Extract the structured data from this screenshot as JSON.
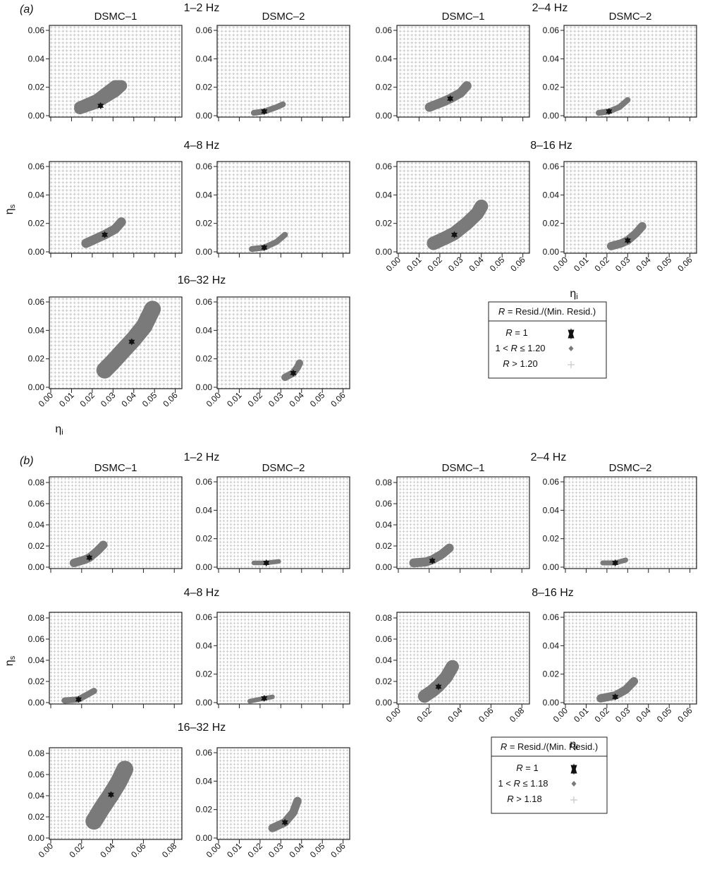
{
  "panel_labels": {
    "a": "(a)",
    "b": "(b)"
  },
  "symbols": {
    "eta_i": "η",
    "sub_i": "i",
    "eta_s": "η",
    "sub_s": "s"
  },
  "colors": {
    "grid_marker": "#c8c8c8",
    "region": "#7a7a7a",
    "star": "#111111",
    "frame": "#222222"
  },
  "legend_a": {
    "header": {
      "r": "R",
      "text": " = Resid./(Min. Resid.)"
    },
    "rows": [
      {
        "pre": "",
        "r": "R",
        "post": " = 1",
        "marker": "star-icon"
      },
      {
        "pre": "1 < ",
        "r": "R",
        "post": " ≤ 1.20",
        "marker": "diamond-icon"
      },
      {
        "pre": "",
        "r": "R",
        "post": " > 1.20",
        "marker": "plus-icon"
      }
    ]
  },
  "legend_b": {
    "header": {
      "r": "R",
      "text": " = Resid./(Min. Resid.)"
    },
    "rows": [
      {
        "pre": "",
        "r": "R",
        "post": " = 1",
        "marker": "star-icon"
      },
      {
        "pre": "1 < ",
        "r": "R",
        "post": " ≤ 1.18",
        "marker": "diamond-icon"
      },
      {
        "pre": "",
        "r": "R",
        "post": " > 1.18",
        "marker": "plus-icon"
      }
    ]
  },
  "chart_data": [
    {
      "type": "scatter",
      "panel": "a",
      "band": "1–2 Hz",
      "subplot_title": "DSMC–1",
      "xlim": [
        0,
        0.0625
      ],
      "ylim": [
        0,
        0.0625
      ],
      "xticks": [
        "0.00",
        "0.01",
        "0.02",
        "0.03",
        "0.04",
        "0.05",
        "0.06"
      ],
      "yticks": [
        "0.00",
        "0.02",
        "0.04",
        "0.06"
      ],
      "show_xtick_labels": false,
      "show_ylabel": false,
      "show_xlabel": false,
      "best_fit": [
        0.024,
        0.007
      ],
      "region_pts": [
        [
          0.014,
          0.005
        ],
        [
          0.022,
          0.009
        ],
        [
          0.031,
          0.017
        ],
        [
          0.034,
          0.021
        ],
        [
          0.031,
          0.021
        ],
        [
          0.022,
          0.011
        ],
        [
          0.014,
          0.006
        ]
      ],
      "region_width": 0.0055
    },
    {
      "type": "scatter",
      "panel": "a",
      "band": "1–2 Hz",
      "subplot_title": "DSMC–2",
      "xlim": [
        0,
        0.0625
      ],
      "ylim": [
        0,
        0.0625
      ],
      "xticks": [
        "0.00",
        "0.01",
        "0.02",
        "0.03",
        "0.04",
        "0.05",
        "0.06"
      ],
      "yticks": [
        "0.00",
        "0.02",
        "0.04",
        "0.06"
      ],
      "show_xtick_labels": false,
      "show_ylabel": false,
      "show_xlabel": false,
      "best_fit": [
        0.022,
        0.003
      ],
      "region_pts": [
        [
          0.017,
          0.002
        ],
        [
          0.022,
          0.003
        ],
        [
          0.028,
          0.006
        ],
        [
          0.031,
          0.008
        ]
      ],
      "region_width": 0.0028
    },
    {
      "type": "scatter",
      "panel": "a",
      "band": "2–4 Hz",
      "subplot_title": "DSMC–1",
      "xlim": [
        0,
        0.0625
      ],
      "ylim": [
        0,
        0.0625
      ],
      "xticks": [
        "0.00",
        "0.01",
        "0.02",
        "0.03",
        "0.04",
        "0.05",
        "0.06"
      ],
      "yticks": [
        "0.00",
        "0.02",
        "0.04",
        "0.06"
      ],
      "show_xtick_labels": false,
      "show_ylabel": false,
      "show_xlabel": false,
      "best_fit": [
        0.025,
        0.012
      ],
      "region_pts": [
        [
          0.015,
          0.006
        ],
        [
          0.022,
          0.01
        ],
        [
          0.025,
          0.012
        ],
        [
          0.03,
          0.016
        ],
        [
          0.033,
          0.021
        ]
      ],
      "region_width": 0.0045
    },
    {
      "type": "scatter",
      "panel": "a",
      "band": "2–4 Hz",
      "subplot_title": "DSMC–2",
      "xlim": [
        0,
        0.0625
      ],
      "ylim": [
        0,
        0.0625
      ],
      "xticks": [
        "0.00",
        "0.01",
        "0.02",
        "0.03",
        "0.04",
        "0.05",
        "0.06"
      ],
      "yticks": [
        "0.00",
        "0.02",
        "0.04",
        "0.06"
      ],
      "show_xtick_labels": false,
      "show_ylabel": false,
      "show_xlabel": false,
      "best_fit": [
        0.021,
        0.003
      ],
      "region_pts": [
        [
          0.016,
          0.002
        ],
        [
          0.021,
          0.003
        ],
        [
          0.026,
          0.006
        ],
        [
          0.03,
          0.011
        ]
      ],
      "region_width": 0.0028
    },
    {
      "type": "scatter",
      "panel": "a",
      "band": "4–8 Hz",
      "subplot_title": "",
      "xlim": [
        0,
        0.0625
      ],
      "ylim": [
        0,
        0.0625
      ],
      "xticks": [
        "0.00",
        "0.01",
        "0.02",
        "0.03",
        "0.04",
        "0.05",
        "0.06"
      ],
      "yticks": [
        "0.00",
        "0.02",
        "0.04",
        "0.06"
      ],
      "show_xtick_labels": false,
      "show_ylabel": true,
      "show_xlabel": false,
      "best_fit": [
        0.026,
        0.012
      ],
      "region_pts": [
        [
          0.017,
          0.006
        ],
        [
          0.023,
          0.01
        ],
        [
          0.026,
          0.012
        ],
        [
          0.031,
          0.016
        ],
        [
          0.034,
          0.021
        ]
      ],
      "region_width": 0.0045
    },
    {
      "type": "scatter",
      "panel": "a",
      "band": "4–8 Hz",
      "subplot_title": "",
      "xlim": [
        0,
        0.0625
      ],
      "ylim": [
        0,
        0.0625
      ],
      "xticks": [
        "0.00",
        "0.01",
        "0.02",
        "0.03",
        "0.04",
        "0.05",
        "0.06"
      ],
      "yticks": [
        "0.00",
        "0.02",
        "0.04",
        "0.06"
      ],
      "show_xtick_labels": false,
      "show_ylabel": false,
      "show_xlabel": false,
      "best_fit": [
        0.022,
        0.003
      ],
      "region_pts": [
        [
          0.016,
          0.002
        ],
        [
          0.022,
          0.003
        ],
        [
          0.028,
          0.007
        ],
        [
          0.032,
          0.012
        ]
      ],
      "region_width": 0.0028
    },
    {
      "type": "scatter",
      "panel": "a",
      "band": "8–16 Hz",
      "subplot_title": "",
      "xlim": [
        0,
        0.0625
      ],
      "ylim": [
        0,
        0.0625
      ],
      "xticks": [
        "0.00",
        "0.01",
        "0.02",
        "0.03",
        "0.04",
        "0.05",
        "0.06"
      ],
      "yticks": [
        "0.00",
        "0.02",
        "0.04",
        "0.06"
      ],
      "show_xtick_labels": true,
      "show_ylabel": false,
      "show_xlabel": false,
      "best_fit": [
        0.027,
        0.012
      ],
      "region_pts": [
        [
          0.017,
          0.006
        ],
        [
          0.023,
          0.01
        ],
        [
          0.027,
          0.013
        ],
        [
          0.033,
          0.02
        ],
        [
          0.038,
          0.027
        ],
        [
          0.04,
          0.032
        ]
      ],
      "region_width": 0.0065
    },
    {
      "type": "scatter",
      "panel": "a",
      "band": "8–16 Hz",
      "subplot_title": "",
      "xlim": [
        0,
        0.0625
      ],
      "ylim": [
        0,
        0.0625
      ],
      "xticks": [
        "0.00",
        "0.01",
        "0.02",
        "0.03",
        "0.04",
        "0.05",
        "0.06"
      ],
      "yticks": [
        "0.00",
        "0.02",
        "0.04",
        "0.06"
      ],
      "show_xtick_labels": true,
      "show_ylabel": false,
      "show_xlabel": true,
      "best_fit": [
        0.03,
        0.008
      ],
      "region_pts": [
        [
          0.022,
          0.004
        ],
        [
          0.027,
          0.006
        ],
        [
          0.03,
          0.008
        ],
        [
          0.034,
          0.013
        ],
        [
          0.037,
          0.018
        ]
      ],
      "region_width": 0.004
    },
    {
      "type": "scatter",
      "panel": "a",
      "band": "16–32 Hz",
      "subplot_title": "",
      "xlim": [
        0,
        0.0625
      ],
      "ylim": [
        0,
        0.0625
      ],
      "xticks": [
        "0.00",
        "0.01",
        "0.02",
        "0.03",
        "0.04",
        "0.05",
        "0.06"
      ],
      "yticks": [
        "0.00",
        "0.02",
        "0.04",
        "0.06"
      ],
      "show_xtick_labels": true,
      "show_ylabel": false,
      "show_xlabel": true,
      "best_fit": [
        0.039,
        0.032
      ],
      "region_pts": [
        [
          0.026,
          0.012
        ],
        [
          0.03,
          0.018
        ],
        [
          0.035,
          0.026
        ],
        [
          0.04,
          0.034
        ],
        [
          0.045,
          0.043
        ],
        [
          0.049,
          0.055
        ]
      ],
      "region_width": 0.008
    },
    {
      "type": "scatter",
      "panel": "a",
      "band": "16–32 Hz",
      "subplot_title": "",
      "xlim": [
        0,
        0.0625
      ],
      "ylim": [
        0,
        0.0625
      ],
      "xticks": [
        "0.00",
        "0.01",
        "0.02",
        "0.03",
        "0.04",
        "0.05",
        "0.06"
      ],
      "yticks": [
        "0.00",
        "0.02",
        "0.04",
        "0.06"
      ],
      "show_xtick_labels": true,
      "show_ylabel": false,
      "show_xlabel": false,
      "best_fit": [
        0.036,
        0.01
      ],
      "region_pts": [
        [
          0.032,
          0.007
        ],
        [
          0.036,
          0.01
        ],
        [
          0.038,
          0.014
        ],
        [
          0.039,
          0.017
        ]
      ],
      "region_width": 0.0035
    },
    {
      "type": "scatter",
      "panel": "b",
      "band": "1–2 Hz",
      "subplot_title": "DSMC–1",
      "xlim": [
        0,
        0.084
      ],
      "ylim": [
        0,
        0.084
      ],
      "xticks": [
        "0.00",
        "0.02",
        "0.04",
        "0.06",
        "0.08"
      ],
      "yticks": [
        "0.00",
        "0.02",
        "0.04",
        "0.06",
        "0.08"
      ],
      "show_xtick_labels": false,
      "show_ylabel": false,
      "show_xlabel": false,
      "best_fit": [
        0.025,
        0.009
      ],
      "region_pts": [
        [
          0.015,
          0.004
        ],
        [
          0.022,
          0.007
        ],
        [
          0.025,
          0.009
        ],
        [
          0.03,
          0.015
        ],
        [
          0.034,
          0.021
        ]
      ],
      "region_width": 0.0055
    },
    {
      "type": "scatter",
      "panel": "b",
      "band": "1–2 Hz",
      "subplot_title": "DSMC–2",
      "xlim": [
        0,
        0.0625
      ],
      "ylim": [
        0,
        0.0625
      ],
      "xticks": [
        "0.00",
        "0.01",
        "0.02",
        "0.03",
        "0.04",
        "0.05",
        "0.06"
      ],
      "yticks": [
        "0.00",
        "0.02",
        "0.04",
        "0.06"
      ],
      "show_xtick_labels": false,
      "show_ylabel": false,
      "show_xlabel": false,
      "best_fit": [
        0.023,
        0.003
      ],
      "region_pts": [
        [
          0.017,
          0.003
        ],
        [
          0.023,
          0.003
        ],
        [
          0.029,
          0.004
        ]
      ],
      "region_width": 0.0022
    },
    {
      "type": "scatter",
      "panel": "b",
      "band": "2–4 Hz",
      "subplot_title": "DSMC–1",
      "xlim": [
        0,
        0.084
      ],
      "ylim": [
        0,
        0.084
      ],
      "xticks": [
        "0.00",
        "0.02",
        "0.04",
        "0.06",
        "0.08"
      ],
      "yticks": [
        "0.00",
        "0.02",
        "0.04",
        "0.06",
        "0.08"
      ],
      "show_xtick_labels": false,
      "show_ylabel": false,
      "show_xlabel": false,
      "best_fit": [
        0.022,
        0.006
      ],
      "region_pts": [
        [
          0.01,
          0.004
        ],
        [
          0.018,
          0.005
        ],
        [
          0.022,
          0.007
        ],
        [
          0.028,
          0.012
        ],
        [
          0.033,
          0.018
        ]
      ],
      "region_width": 0.0058
    },
    {
      "type": "scatter",
      "panel": "b",
      "band": "2–4 Hz",
      "subplot_title": "DSMC–2",
      "xlim": [
        0,
        0.0625
      ],
      "ylim": [
        0,
        0.0625
      ],
      "xticks": [
        "0.00",
        "0.01",
        "0.02",
        "0.03",
        "0.04",
        "0.05",
        "0.06"
      ],
      "yticks": [
        "0.00",
        "0.02",
        "0.04",
        "0.06"
      ],
      "show_xtick_labels": false,
      "show_ylabel": false,
      "show_xlabel": false,
      "best_fit": [
        0.024,
        0.003
      ],
      "region_pts": [
        [
          0.018,
          0.003
        ],
        [
          0.024,
          0.003
        ],
        [
          0.029,
          0.005
        ]
      ],
      "region_width": 0.0024
    },
    {
      "type": "scatter",
      "panel": "b",
      "band": "4–8 Hz",
      "subplot_title": "",
      "xlim": [
        0,
        0.084
      ],
      "ylim": [
        0,
        0.084
      ],
      "xticks": [
        "0.00",
        "0.02",
        "0.04",
        "0.06",
        "0.08"
      ],
      "yticks": [
        "0.00",
        "0.02",
        "0.04",
        "0.06",
        "0.08"
      ],
      "show_xtick_labels": false,
      "show_ylabel": true,
      "show_xlabel": false,
      "best_fit": [
        0.018,
        0.003
      ],
      "region_pts": [
        [
          0.009,
          0.002
        ],
        [
          0.018,
          0.003
        ],
        [
          0.023,
          0.007
        ],
        [
          0.028,
          0.011
        ]
      ],
      "region_width": 0.004
    },
    {
      "type": "scatter",
      "panel": "b",
      "band": "4–8 Hz",
      "subplot_title": "",
      "xlim": [
        0,
        0.0625
      ],
      "ylim": [
        0,
        0.0625
      ],
      "xticks": [
        "0.00",
        "0.01",
        "0.02",
        "0.03",
        "0.04",
        "0.05",
        "0.06"
      ],
      "yticks": [
        "0.00",
        "0.02",
        "0.04",
        "0.06"
      ],
      "show_xtick_labels": false,
      "show_ylabel": false,
      "show_xlabel": false,
      "best_fit": [
        0.022,
        0.003
      ],
      "region_pts": [
        [
          0.015,
          0.001
        ],
        [
          0.022,
          0.003
        ],
        [
          0.026,
          0.004
        ]
      ],
      "region_width": 0.0022
    },
    {
      "type": "scatter",
      "panel": "b",
      "band": "8–16 Hz",
      "subplot_title": "",
      "xlim": [
        0,
        0.084
      ],
      "ylim": [
        0,
        0.084
      ],
      "xticks": [
        "0.00",
        "0.02",
        "0.04",
        "0.06",
        "0.08"
      ],
      "yticks": [
        "0.00",
        "0.02",
        "0.04",
        "0.06",
        "0.08"
      ],
      "show_xtick_labels": true,
      "show_ylabel": false,
      "show_xlabel": false,
      "best_fit": [
        0.026,
        0.015
      ],
      "region_pts": [
        [
          0.017,
          0.006
        ],
        [
          0.022,
          0.011
        ],
        [
          0.026,
          0.016
        ],
        [
          0.031,
          0.024
        ],
        [
          0.035,
          0.034
        ]
      ],
      "region_width": 0.0085
    },
    {
      "type": "scatter",
      "panel": "b",
      "band": "8–16 Hz",
      "subplot_title": "",
      "xlim": [
        0,
        0.0625
      ],
      "ylim": [
        0,
        0.0625
      ],
      "xticks": [
        "0.00",
        "0.01",
        "0.02",
        "0.03",
        "0.04",
        "0.05",
        "0.06"
      ],
      "yticks": [
        "0.00",
        "0.02",
        "0.04",
        "0.06"
      ],
      "show_xtick_labels": true,
      "show_ylabel": false,
      "show_xlabel": true,
      "best_fit": [
        0.024,
        0.004
      ],
      "region_pts": [
        [
          0.017,
          0.003
        ],
        [
          0.024,
          0.005
        ],
        [
          0.029,
          0.009
        ],
        [
          0.033,
          0.015
        ]
      ],
      "region_width": 0.004
    },
    {
      "type": "scatter",
      "panel": "b",
      "band": "16–32 Hz",
      "subplot_title": "",
      "xlim": [
        0,
        0.084
      ],
      "ylim": [
        0,
        0.084
      ],
      "xticks": [
        "0.00",
        "0.02",
        "0.04",
        "0.06",
        "0.08"
      ],
      "yticks": [
        "0.00",
        "0.02",
        "0.04",
        "0.06",
        "0.08"
      ],
      "show_xtick_labels": true,
      "show_ylabel": false,
      "show_xlabel": true,
      "best_fit": [
        0.039,
        0.041
      ],
      "region_pts": [
        [
          0.028,
          0.016
        ],
        [
          0.033,
          0.028
        ],
        [
          0.039,
          0.041
        ],
        [
          0.044,
          0.053
        ],
        [
          0.048,
          0.065
        ]
      ],
      "region_width": 0.011
    },
    {
      "type": "scatter",
      "panel": "b",
      "band": "16–32 Hz",
      "subplot_title": "",
      "xlim": [
        0,
        0.0625
      ],
      "ylim": [
        0,
        0.0625
      ],
      "xticks": [
        "0.00",
        "0.01",
        "0.02",
        "0.03",
        "0.04",
        "0.05",
        "0.06"
      ],
      "yticks": [
        "0.00",
        "0.02",
        "0.04",
        "0.06"
      ],
      "show_xtick_labels": true,
      "show_ylabel": false,
      "show_xlabel": false,
      "best_fit": [
        0.032,
        0.011
      ],
      "region_pts": [
        [
          0.026,
          0.007
        ],
        [
          0.032,
          0.011
        ],
        [
          0.036,
          0.018
        ],
        [
          0.038,
          0.026
        ]
      ],
      "region_width": 0.004
    }
  ]
}
